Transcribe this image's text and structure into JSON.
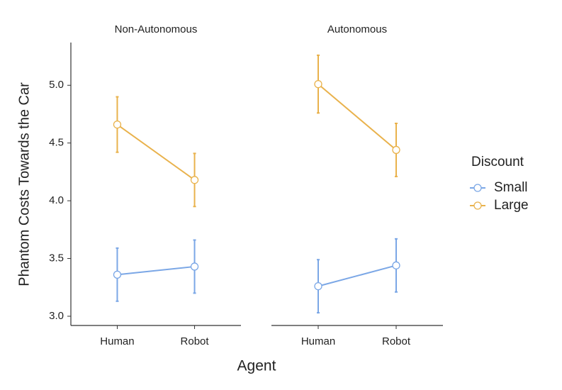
{
  "chart_data": {
    "type": "line",
    "x_label": "Agent",
    "y_label": "Phantom Costs Towards the Car",
    "legend_title": "Discount",
    "categories": [
      "Human",
      "Robot"
    ],
    "ylim": [
      2.92,
      5.37
    ],
    "yticks": [
      {
        "value": 3.0,
        "label": "3.0"
      },
      3.5,
      {
        "value": 4.0,
        "label": "4.0"
      },
      4.5,
      {
        "value": 5.0,
        "label": "5.0"
      }
    ],
    "series": [
      {
        "name": "Small",
        "color": "#7ba7e6"
      },
      {
        "name": "Large",
        "color": "#e9b24c"
      }
    ],
    "facets": [
      {
        "title": "Non-Autonomous",
        "series": [
          {
            "values": [
              3.36,
              3.43
            ],
            "errors": [
              0.23,
              0.23
            ]
          },
          {
            "values": [
              4.66,
              4.18
            ],
            "errors": [
              0.24,
              0.23
            ]
          }
        ]
      },
      {
        "title": "Autonomous",
        "series": [
          {
            "values": [
              3.26,
              3.44
            ],
            "errors": [
              0.23,
              0.23
            ]
          },
          {
            "values": [
              5.01,
              4.44
            ],
            "errors": [
              0.25,
              0.23
            ]
          }
        ]
      }
    ]
  }
}
